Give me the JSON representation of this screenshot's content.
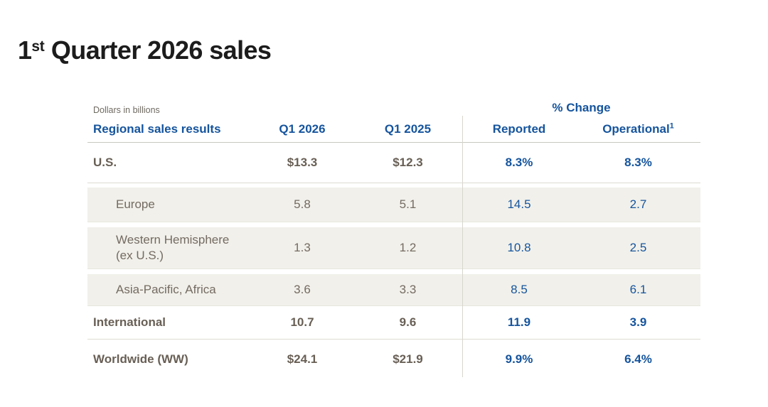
{
  "page": {
    "title_num": "1",
    "title_sup": "st",
    "title_rest": " Quarter 2026 sales"
  },
  "table": {
    "note": "Dollars in billions",
    "group_header": "% Change",
    "columns": {
      "label": "Regional sales results",
      "q1_2026": "Q1 2026",
      "q1_2025": "Q1 2025",
      "reported": "Reported",
      "operational": "Operational",
      "operational_footnote": "1"
    },
    "rows": [
      {
        "label": "U.S.",
        "q1_2026": "$13.3",
        "q1_2025": "$12.3",
        "reported": "8.3%",
        "operational": "8.3%"
      },
      {
        "label": "Europe",
        "q1_2026": "5.8",
        "q1_2025": "5.1",
        "reported": "14.5",
        "operational": "2.7"
      },
      {
        "label": "Western Hemisphere",
        "label2": "(ex U.S.)",
        "q1_2026": "1.3",
        "q1_2025": "1.2",
        "reported": "10.8",
        "operational": "2.5"
      },
      {
        "label": "Asia-Pacific, Africa",
        "q1_2026": "3.6",
        "q1_2025": "3.3",
        "reported": "8.5",
        "operational": "6.1"
      },
      {
        "label": "International",
        "q1_2026": "10.7",
        "q1_2025": "9.6",
        "reported": "11.9",
        "operational": "3.9"
      },
      {
        "label": "Worldwide (WW)",
        "q1_2026": "$24.1",
        "q1_2025": "$21.9",
        "reported": "9.9%",
        "operational": "6.4%"
      }
    ]
  },
  "chart_data": {
    "type": "table",
    "title": "1st Quarter 2026 sales",
    "subtitle": "Dollars in billions",
    "columns": [
      "Regional sales results",
      "Q1 2026",
      "Q1 2025",
      "% Change Reported",
      "% Change Operational"
    ],
    "rows": [
      [
        "U.S.",
        13.3,
        12.3,
        8.3,
        8.3
      ],
      [
        "Europe",
        5.8,
        5.1,
        14.5,
        2.7
      ],
      [
        "Western Hemisphere (ex U.S.)",
        1.3,
        1.2,
        10.8,
        2.5
      ],
      [
        "Asia-Pacific, Africa",
        3.6,
        3.3,
        8.5,
        6.1
      ],
      [
        "International",
        10.7,
        9.6,
        11.9,
        3.9
      ],
      [
        "Worldwide (WW)",
        24.1,
        21.9,
        9.9,
        6.4
      ]
    ]
  },
  "colors": {
    "accent_blue": "#15549D",
    "strong_text": "#685F55",
    "sub_text": "#746B62",
    "band_background": "#F1F0EA",
    "rule_gray": "#C9C8C0",
    "title_black": "#1C1C1C"
  }
}
